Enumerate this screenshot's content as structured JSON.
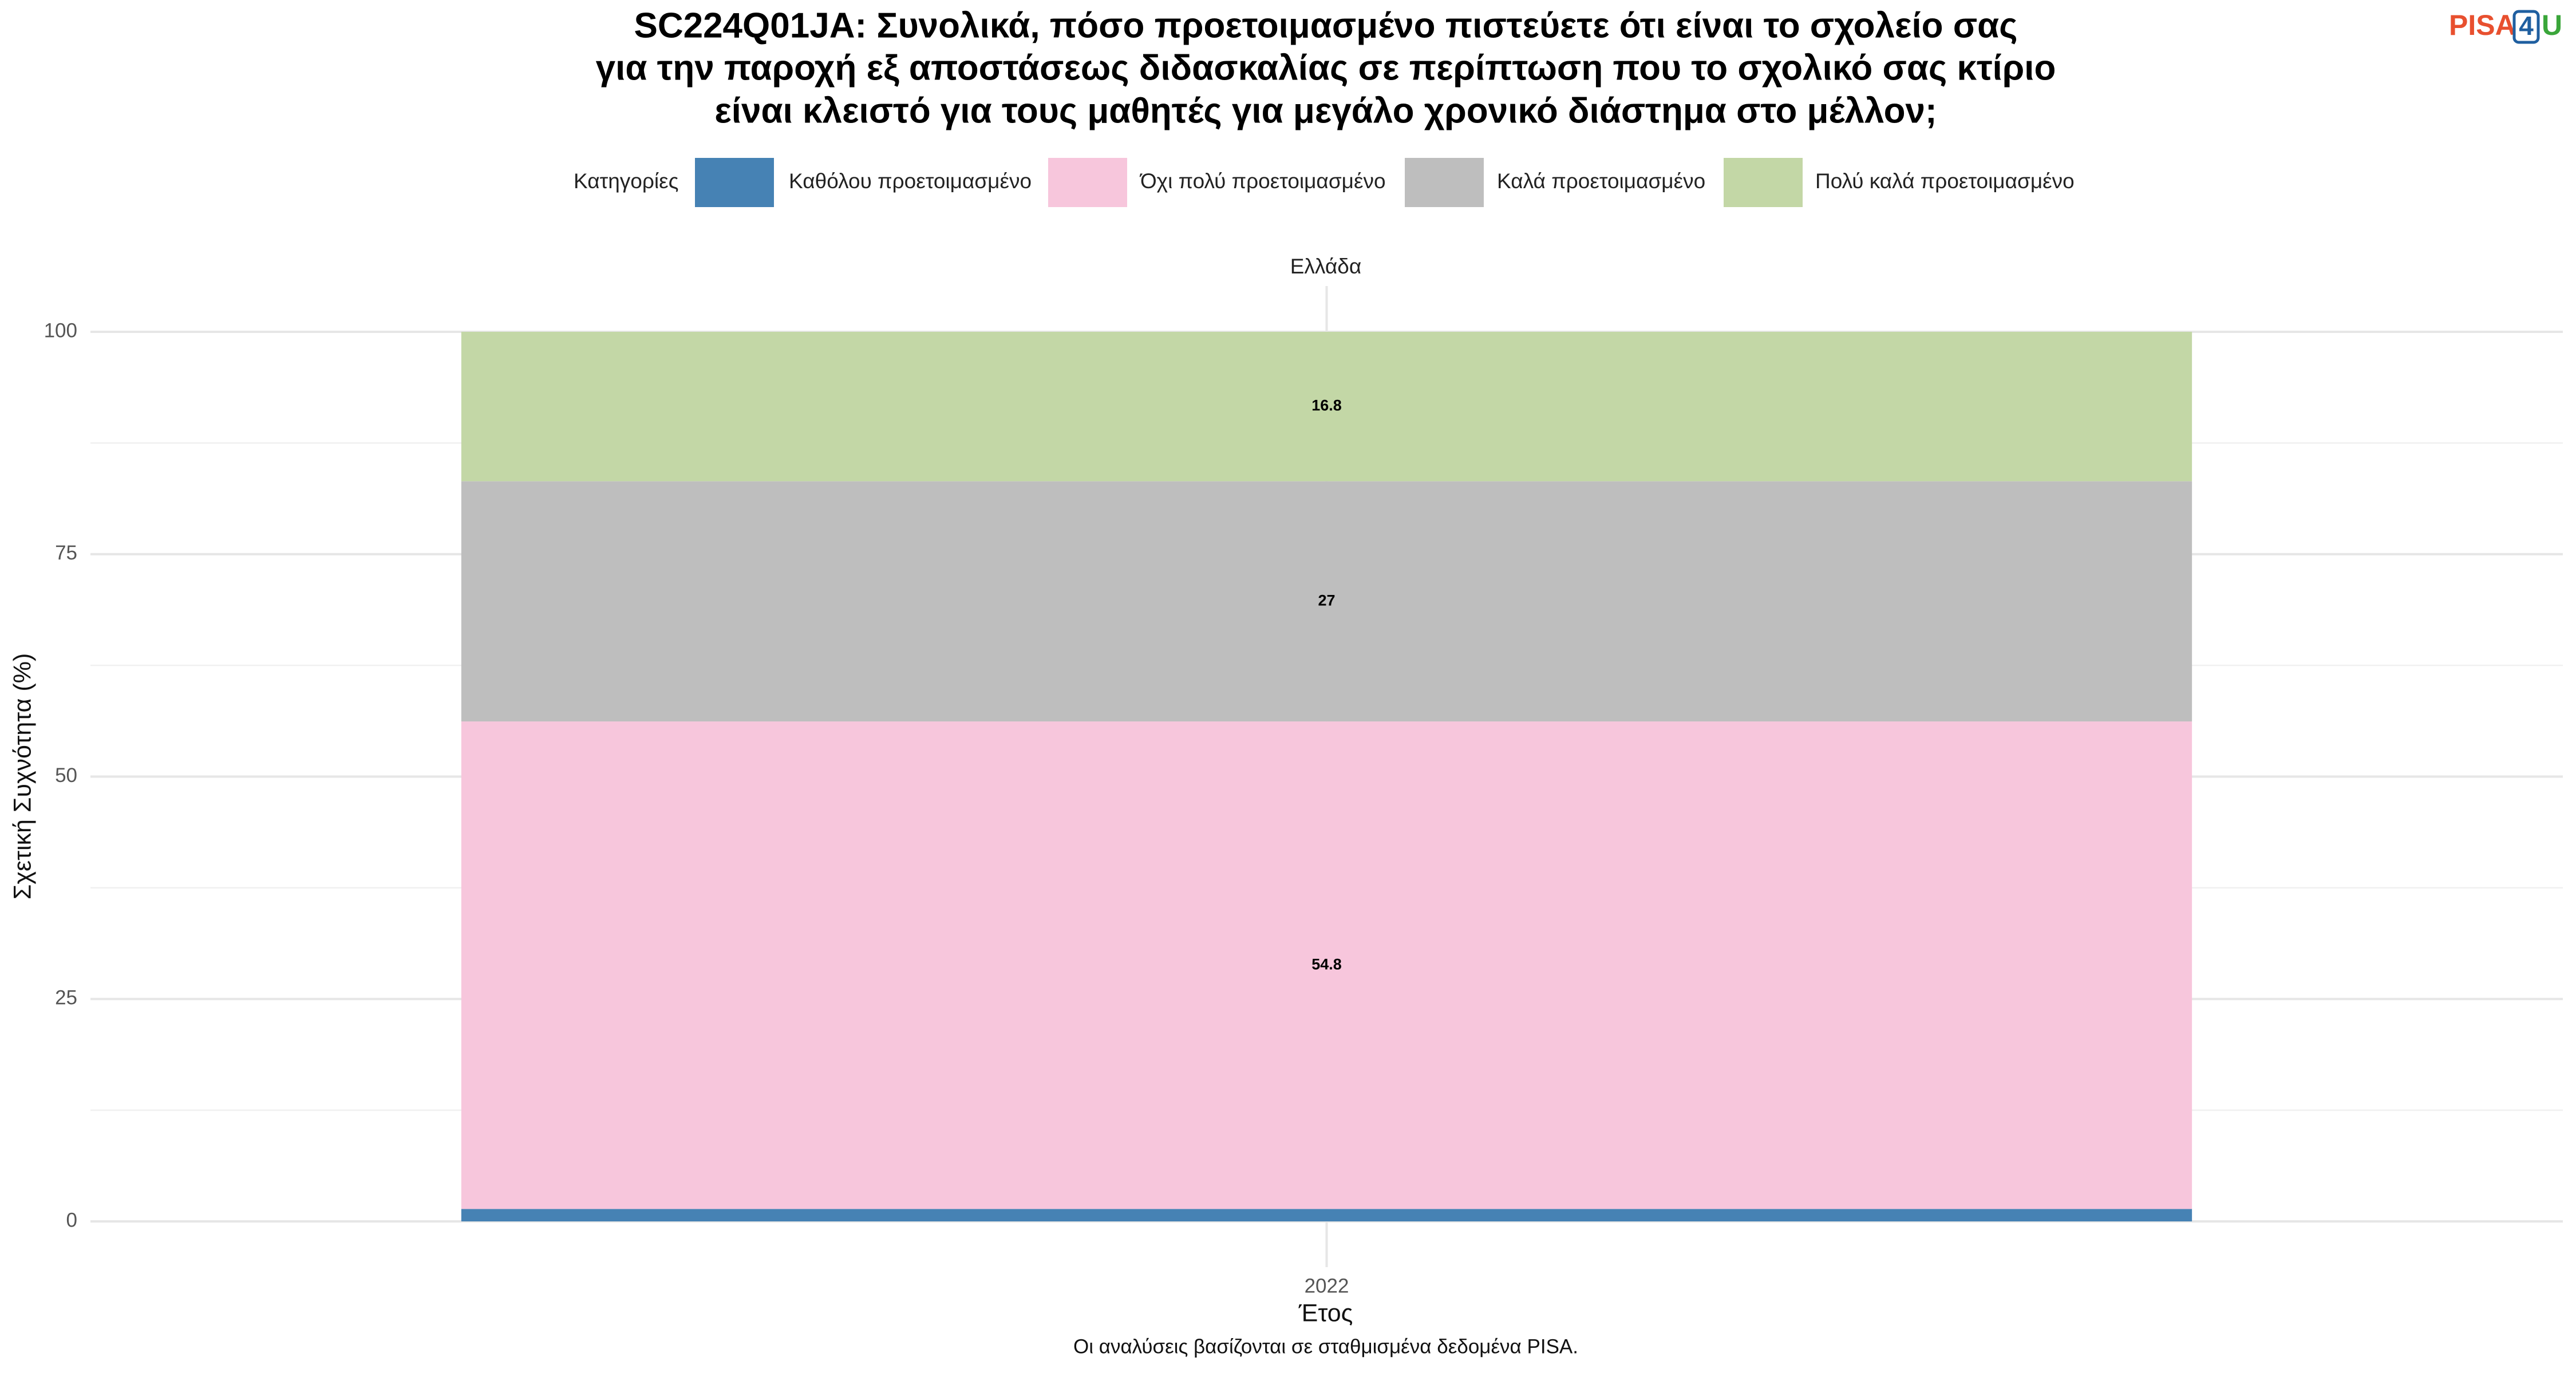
{
  "chart_data": {
    "type": "stacked_bar",
    "title": [
      "SC224Q01JA: Συνολικά, πόσο προετοιμασμένο πιστεύετε ότι είναι το σχολείο σας",
      "για την παροχή εξ αποστάσεως διδασκαλίας σε περίπτωση που το σχολικό σας κτίριο",
      "είναι κλειστό για τους μαθητές για μεγάλο χρονικό διάστημα στο μέλλον;"
    ],
    "logo": [
      "PISA",
      "4",
      "U"
    ],
    "legend_title": "Κατηγορίες",
    "legend_position": "top",
    "facet_label": "Ελλάδα",
    "x_label": "Έτος",
    "y_label": "Σχετική Συχνότητα (%)",
    "caption": "Οι αναλύσεις βασίζονται σε σταθμισμένα δεδομένα PISA.",
    "categories": [
      "2022"
    ],
    "series": [
      {
        "name": "Καθόλου προετοιμασμένο",
        "color": "#4682b4",
        "values": [
          1.4
        ]
      },
      {
        "name": "Όχι πολύ προετοιμασμένο",
        "color": "#f7c6dc",
        "values": [
          54.8
        ]
      },
      {
        "name": "Καλά προετοιμασμένο",
        "color": "#bebebe",
        "values": [
          27
        ]
      },
      {
        "name": "Πολύ καλά προετοιμασμένο",
        "color": "#c3d7a6",
        "values": [
          16.8
        ]
      }
    ],
    "ylim": [
      0,
      100
    ],
    "yticks": [
      0,
      25,
      50,
      75,
      100
    ],
    "grid": true
  }
}
